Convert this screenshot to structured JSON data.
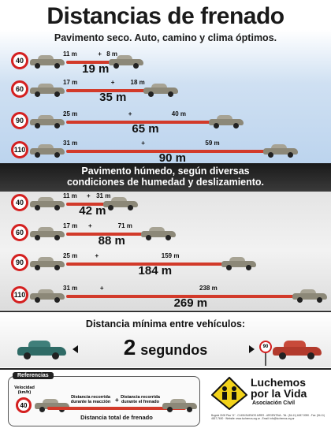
{
  "title": "Distancias de frenado",
  "dry": {
    "subtitle": "Pavimento seco. Auto, camino y clima óptimos.",
    "rows": [
      {
        "speed": "40",
        "reaction": "11 m",
        "braking": "8 m",
        "total": "19 m",
        "reaction_m": 11,
        "braking_m": 8,
        "total_m": 19
      },
      {
        "speed": "60",
        "reaction": "17 m",
        "braking": "18 m",
        "total": "35 m",
        "reaction_m": 17,
        "braking_m": 18,
        "total_m": 35
      },
      {
        "speed": "90",
        "reaction": "25 m",
        "braking": "40 m",
        "total": "65 m",
        "reaction_m": 25,
        "braking_m": 40,
        "total_m": 65
      },
      {
        "speed": "110",
        "reaction": "31 m",
        "braking": "59 m",
        "total": "90 m",
        "reaction_m": 31,
        "braking_m": 59,
        "total_m": 90
      }
    ]
  },
  "wet": {
    "subtitle_line1": "Pavimento húmedo, según diversas",
    "subtitle_line2": "condiciones de humedad y deslizamiento.",
    "rows": [
      {
        "speed": "40",
        "reaction": "11 m",
        "braking": "31 m",
        "total": "42 m",
        "reaction_m": 11,
        "braking_m": 31,
        "total_m": 42
      },
      {
        "speed": "60",
        "reaction": "17 m",
        "braking": "71 m",
        "total": "88 m",
        "reaction_m": 17,
        "braking_m": 71,
        "total_m": 88
      },
      {
        "speed": "90",
        "reaction": "25 m",
        "braking": "159 m",
        "total": "184 m",
        "reaction_m": 25,
        "braking_m": 159,
        "total_m": 184
      },
      {
        "speed": "110",
        "reaction": "31 m",
        "braking": "238 m",
        "total": "269 m",
        "reaction_m": 31,
        "braking_m": 238,
        "total_m": 269
      }
    ]
  },
  "min_distance": {
    "label": "Distancia mínima entre vehículos:",
    "value": "2",
    "unit": "segundos",
    "sign": "90"
  },
  "reference": {
    "header": "Referencias",
    "speed_label_1": "Velocidad",
    "speed_label_2": "(km/h)",
    "speed_example": "40",
    "reaction_label_1": "Distancia recorrida",
    "reaction_label_2": "durante la reacción",
    "plus": "+",
    "braking_label_1": "Distancia recorrida",
    "braking_label_2": "durante el frenado",
    "total_label": "Distancia total de frenado"
  },
  "org": {
    "name_line1": "Luchemos",
    "name_line2": "por la Vida",
    "subtitle": "Asociación Civil",
    "contact": "Bogotá 2108 Piso \"A\" - C1406 BUENOS AIRES - ARGENTINA - Tel.: (54-11) 4637-9090 - Fax: (54-11) 4637-7600 · Website: www.luchemos.org.ar - Email: info@luchemos.org.ar"
  },
  "colors": {
    "brake_bar": "#d23a2a",
    "sign_border": "#d42020",
    "wet_header_bg": "#1a1a1a",
    "dry_bg": "#bcd4ee"
  }
}
